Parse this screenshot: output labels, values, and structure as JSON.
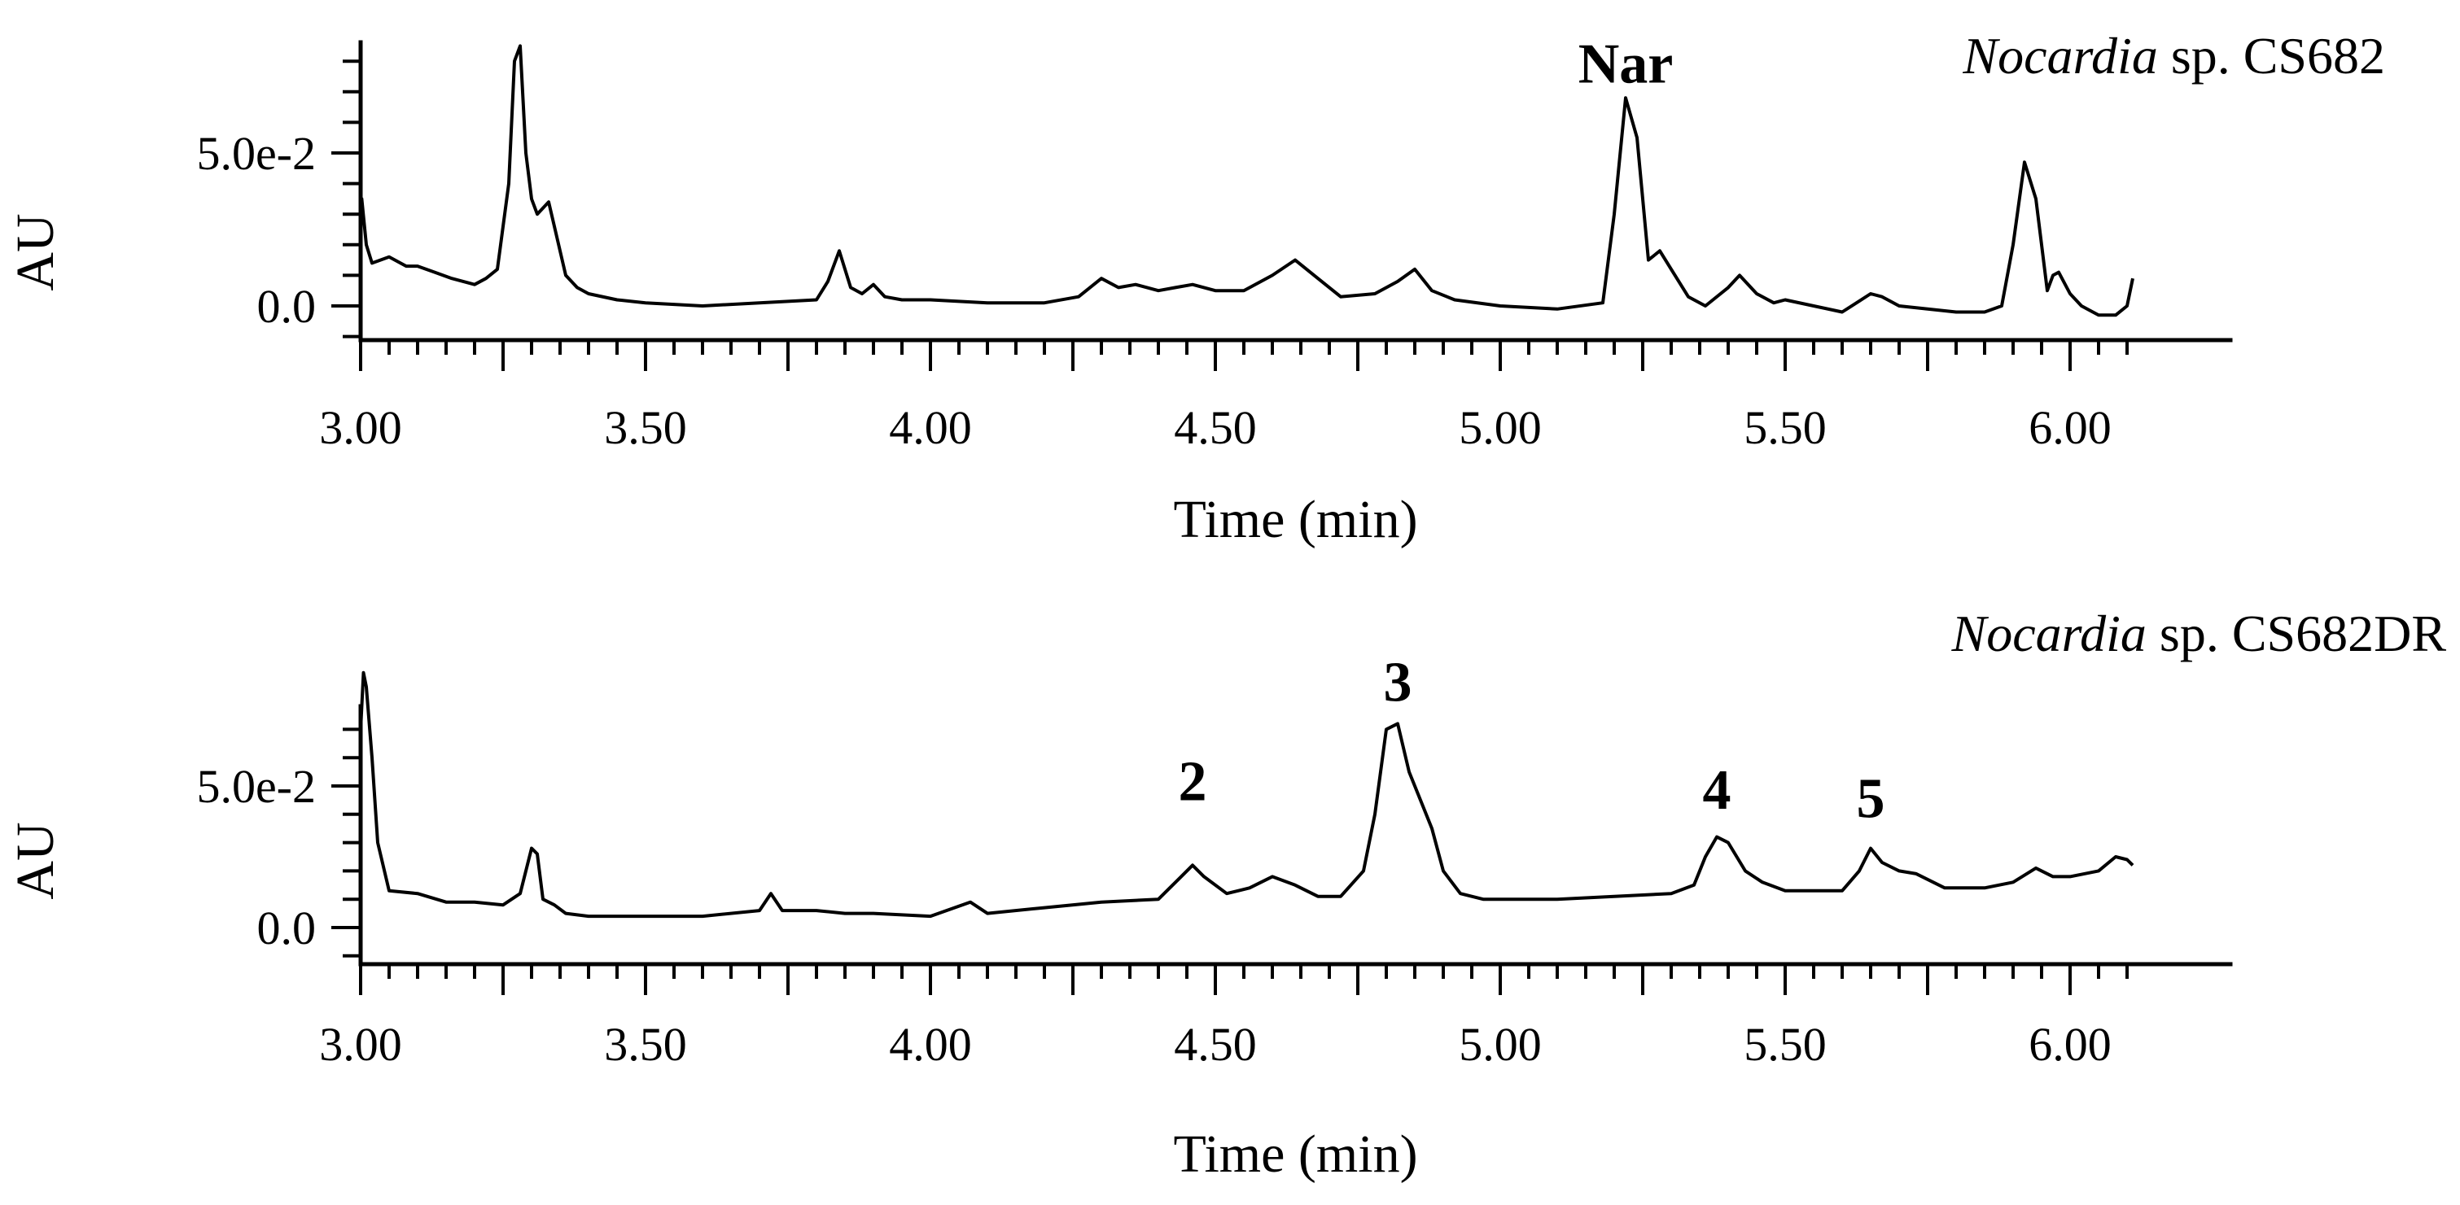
{
  "chart_data": [
    {
      "type": "line",
      "title_italic": "Nocardia",
      "title_rest": " sp. CS682",
      "xlabel": "Time (min)",
      "ylabel": "AU",
      "xlim": [
        3.0,
        6.12
      ],
      "ylim": [
        -0.01,
        0.09
      ],
      "x_ticks": [
        3.0,
        3.5,
        4.0,
        4.5,
        5.0,
        5.5,
        6.0
      ],
      "x_tick_labels": [
        "3.00",
        "3.50",
        "4.00",
        "4.50",
        "5.00",
        "5.50",
        "6.00"
      ],
      "y_ticks": [
        0.0,
        0.05
      ],
      "y_tick_labels": [
        "0.0",
        "5.0e-2"
      ],
      "annotations": [
        {
          "text": "Nar",
          "x": 5.22,
          "y": 0.073
        }
      ],
      "series": [
        {
          "name": "Nocardia sp. CS682",
          "x": [
            3.0,
            3.002,
            3.01,
            3.02,
            3.05,
            3.08,
            3.1,
            3.13,
            3.16,
            3.18,
            3.2,
            3.22,
            3.24,
            3.26,
            3.27,
            3.28,
            3.29,
            3.3,
            3.31,
            3.32,
            3.33,
            3.34,
            3.36,
            3.38,
            3.4,
            3.45,
            3.5,
            3.6,
            3.7,
            3.8,
            3.82,
            3.84,
            3.86,
            3.88,
            3.9,
            3.92,
            3.95,
            4.0,
            4.1,
            4.2,
            4.26,
            4.3,
            4.33,
            4.36,
            4.4,
            4.43,
            4.46,
            4.5,
            4.55,
            4.6,
            4.64,
            4.68,
            4.72,
            4.78,
            4.82,
            4.85,
            4.88,
            4.92,
            5.0,
            5.1,
            5.18,
            5.2,
            5.22,
            5.24,
            5.26,
            5.28,
            5.3,
            5.33,
            5.36,
            5.4,
            5.42,
            5.45,
            5.48,
            5.5,
            5.55,
            5.6,
            5.65,
            5.67,
            5.7,
            5.75,
            5.8,
            5.85,
            5.88,
            5.9,
            5.92,
            5.94,
            5.96,
            5.97,
            5.98,
            6.0,
            6.02,
            6.05,
            6.08,
            6.1,
            6.11
          ],
          "values": [
            0.03,
            0.035,
            0.02,
            0.014,
            0.016,
            0.013,
            0.013,
            0.011,
            0.009,
            0.008,
            0.007,
            0.009,
            0.012,
            0.04,
            0.08,
            0.085,
            0.05,
            0.035,
            0.03,
            0.032,
            0.034,
            0.026,
            0.01,
            0.006,
            0.004,
            0.002,
            0.001,
            0.0,
            0.001,
            0.002,
            0.008,
            0.018,
            0.006,
            0.004,
            0.007,
            0.003,
            0.002,
            0.002,
            0.001,
            0.001,
            0.003,
            0.009,
            0.006,
            0.007,
            0.005,
            0.006,
            0.007,
            0.005,
            0.005,
            0.01,
            0.015,
            0.009,
            0.003,
            0.004,
            0.008,
            0.012,
            0.005,
            0.002,
            0.0,
            -0.001,
            0.001,
            0.03,
            0.068,
            0.055,
            0.015,
            0.018,
            0.012,
            0.003,
            0.0,
            0.006,
            0.01,
            0.004,
            0.001,
            0.002,
            0.0,
            -0.002,
            0.004,
            0.003,
            0.0,
            -0.001,
            -0.002,
            -0.002,
            0.0,
            0.02,
            0.047,
            0.035,
            0.005,
            0.01,
            0.011,
            0.004,
            0.0,
            -0.003,
            -0.003,
            0.0,
            0.009
          ]
        }
      ]
    },
    {
      "type": "line",
      "title_italic": "Nocardia",
      "title_rest": " sp. CS682DR",
      "xlabel": "Time (min)",
      "ylabel": "AU",
      "xlim": [
        3.0,
        6.12
      ],
      "ylim": [
        -0.01,
        0.09
      ],
      "x_ticks": [
        3.0,
        3.5,
        4.0,
        4.5,
        5.0,
        5.5,
        6.0
      ],
      "x_tick_labels": [
        "3.00",
        "3.50",
        "4.00",
        "4.50",
        "5.00",
        "5.50",
        "6.00"
      ],
      "y_ticks": [
        0.0,
        0.05
      ],
      "y_tick_labels": [
        "0.0",
        "5.0e-2"
      ],
      "annotations": [
        {
          "text": "2",
          "x": 4.46,
          "y": 0.045
        },
        {
          "text": "3",
          "x": 4.82,
          "y": 0.08
        },
        {
          "text": "4",
          "x": 5.38,
          "y": 0.042
        },
        {
          "text": "5",
          "x": 5.65,
          "y": 0.039
        }
      ],
      "series": [
        {
          "name": "Nocardia sp. CS682DR",
          "x": [
            3.0,
            3.005,
            3.01,
            3.02,
            3.03,
            3.05,
            3.1,
            3.15,
            3.2,
            3.25,
            3.28,
            3.3,
            3.31,
            3.32,
            3.34,
            3.36,
            3.4,
            3.5,
            3.6,
            3.7,
            3.72,
            3.74,
            3.8,
            3.85,
            3.9,
            4.0,
            4.07,
            4.1,
            4.2,
            4.3,
            4.4,
            4.44,
            4.46,
            4.48,
            4.52,
            4.56,
            4.6,
            4.64,
            4.68,
            4.72,
            4.76,
            4.78,
            4.8,
            4.82,
            4.84,
            4.86,
            4.88,
            4.9,
            4.93,
            4.97,
            5.0,
            5.1,
            5.2,
            5.3,
            5.34,
            5.36,
            5.38,
            5.4,
            5.43,
            5.46,
            5.5,
            5.55,
            5.6,
            5.63,
            5.65,
            5.67,
            5.7,
            5.73,
            5.78,
            5.85,
            5.9,
            5.94,
            5.97,
            6.0,
            6.05,
            6.08,
            6.1,
            6.11
          ],
          "values": [
            0.07,
            0.09,
            0.085,
            0.06,
            0.03,
            0.013,
            0.012,
            0.009,
            0.009,
            0.008,
            0.012,
            0.028,
            0.026,
            0.01,
            0.008,
            0.005,
            0.004,
            0.004,
            0.004,
            0.006,
            0.012,
            0.006,
            0.006,
            0.005,
            0.005,
            0.004,
            0.009,
            0.005,
            0.007,
            0.009,
            0.01,
            0.018,
            0.022,
            0.018,
            0.012,
            0.014,
            0.018,
            0.015,
            0.011,
            0.011,
            0.02,
            0.04,
            0.07,
            0.072,
            0.055,
            0.045,
            0.035,
            0.02,
            0.012,
            0.01,
            0.01,
            0.01,
            0.011,
            0.012,
            0.015,
            0.025,
            0.032,
            0.03,
            0.02,
            0.016,
            0.013,
            0.013,
            0.013,
            0.02,
            0.028,
            0.023,
            0.02,
            0.019,
            0.014,
            0.014,
            0.016,
            0.021,
            0.018,
            0.018,
            0.02,
            0.025,
            0.024,
            0.022
          ]
        }
      ]
    }
  ]
}
